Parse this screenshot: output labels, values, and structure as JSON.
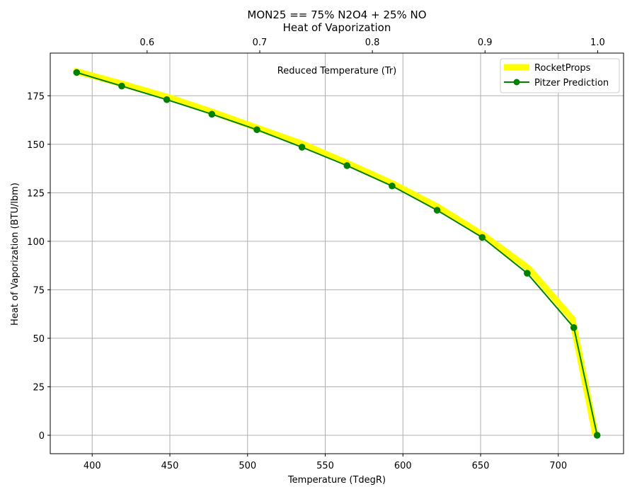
{
  "chart_data": {
    "type": "line",
    "title_lines": [
      "MON25 == 75% N2O4 + 25% NO",
      "Heat of Vaporization"
    ],
    "xlabel": "Temperature (TdegR)",
    "ylabel": "Heat of Vaporization (BTU/lbm)",
    "top_xlabel": "Reduced Temperature (Tr)",
    "xlim": [
      373,
      742
    ],
    "ylim": [
      -9.5,
      197
    ],
    "x_ticks": [
      400,
      450,
      500,
      550,
      600,
      650,
      700
    ],
    "y_ticks": [
      0,
      25,
      50,
      75,
      100,
      125,
      150,
      175
    ],
    "top_xlim": [
      0.514,
      1.023
    ],
    "top_ticks": [
      0.6,
      0.7,
      0.8,
      0.9,
      1.0
    ],
    "top_tick_labels": [
      "0.6",
      "0.7",
      "0.8",
      "0.9",
      "1.0"
    ],
    "grid": true,
    "legend_position": "top-right",
    "series": [
      {
        "name": "RocketProps",
        "color": "#ffff00",
        "style": "thick-line",
        "x": [
          388,
          420,
          450,
          478,
          506,
          536,
          565,
          594,
          623,
          652,
          681,
          709,
          724
        ],
        "y": [
          188,
          181,
          174,
          166.5,
          158.5,
          150,
          140,
          129.5,
          117.5,
          103,
          86,
          60,
          0
        ]
      },
      {
        "name": "Pitzer Prediction",
        "color": "#008000",
        "style": "line-markers",
        "x": [
          390,
          419,
          448,
          477,
          506,
          535,
          564,
          593,
          622,
          651,
          680,
          710,
          725
        ],
        "y": [
          187,
          180,
          173,
          165.5,
          157.5,
          148.5,
          139,
          128.5,
          116,
          102,
          83.5,
          55.5,
          0
        ]
      }
    ]
  }
}
